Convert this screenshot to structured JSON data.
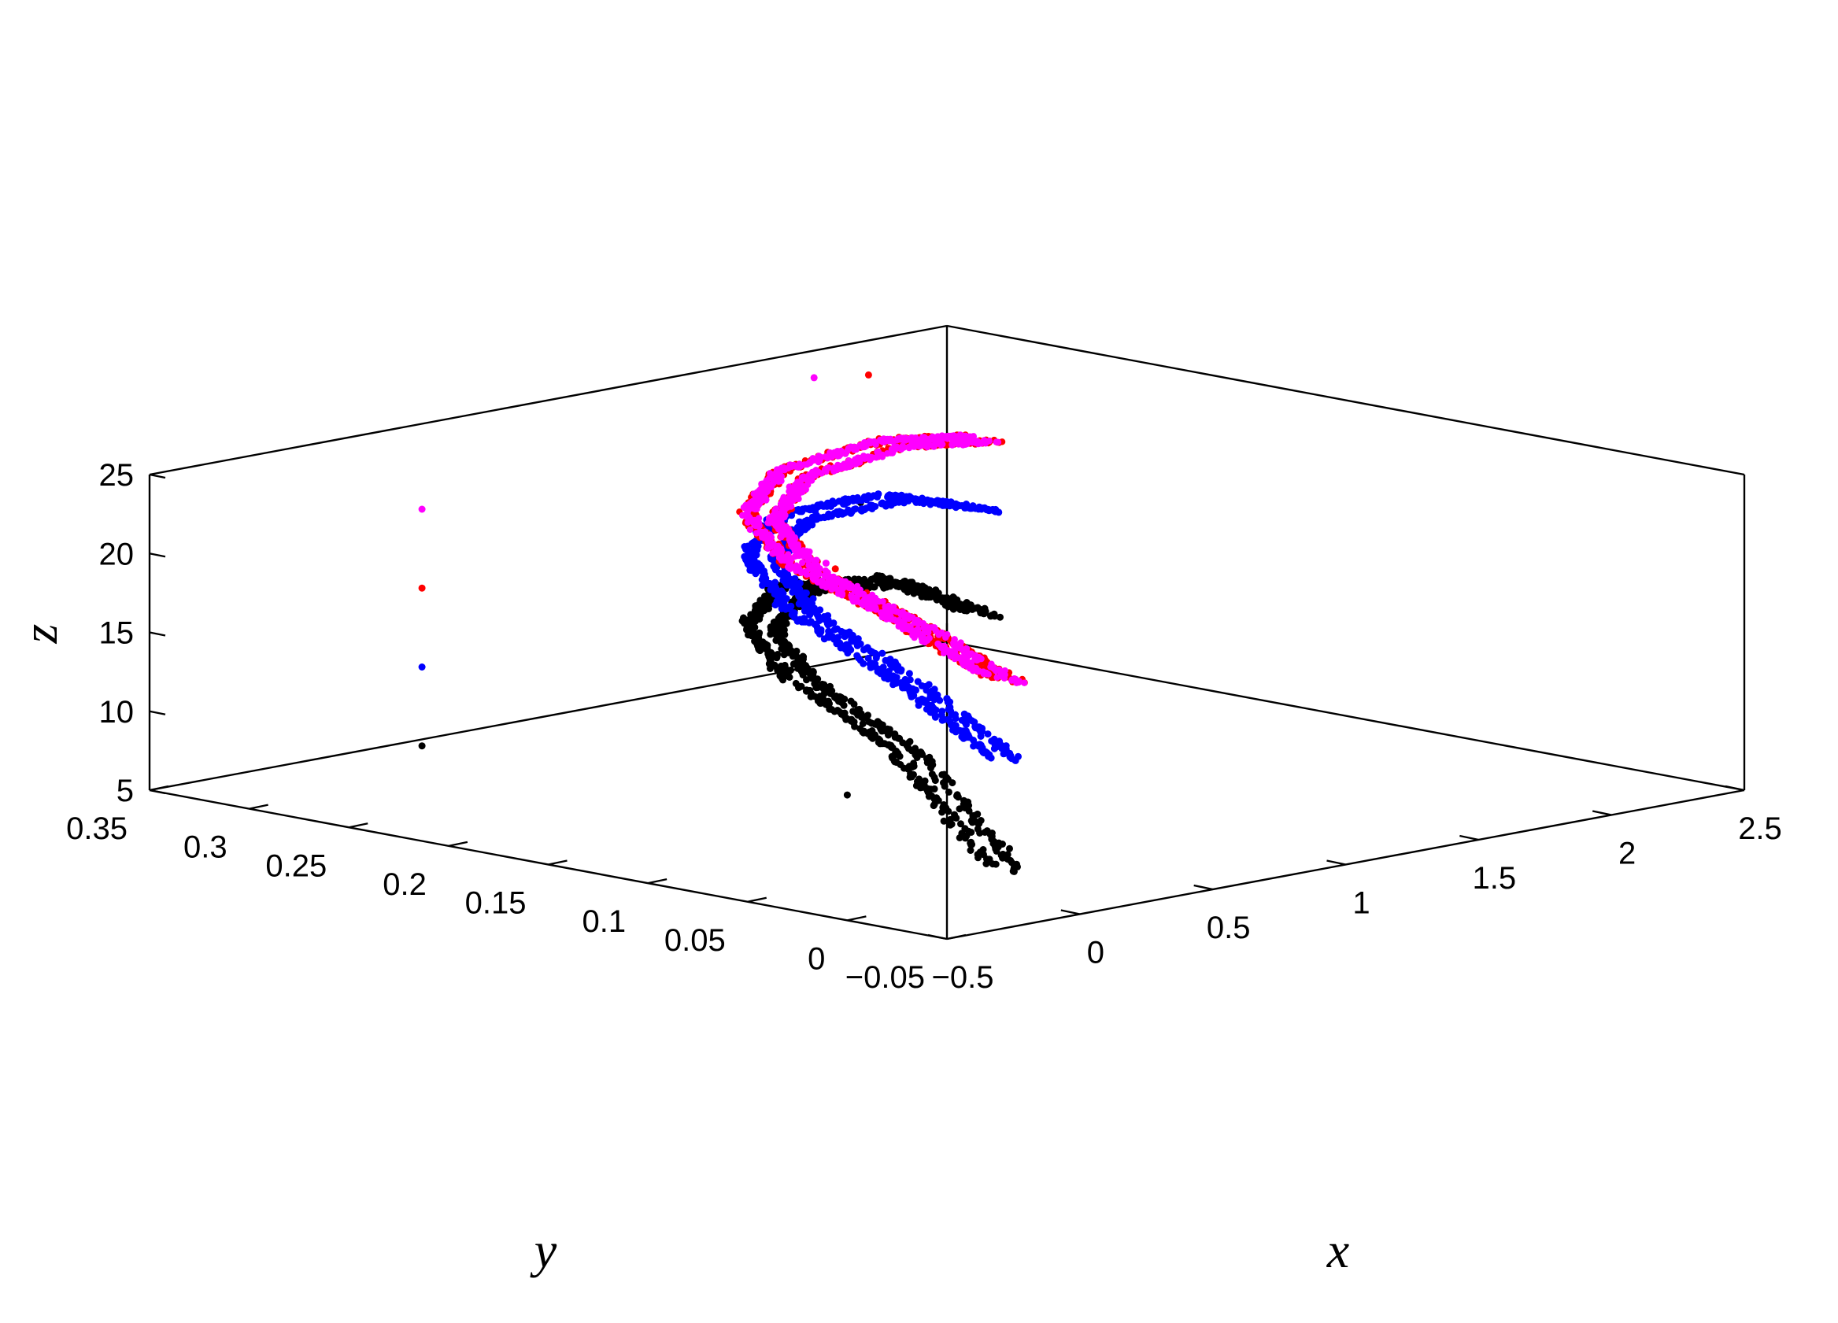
{
  "chart_data": {
    "type": "scatter",
    "projection": "3d",
    "title": "",
    "xlabel": "x",
    "ylabel": "y",
    "zlabel": "z",
    "xlim": [
      -0.5,
      2.5
    ],
    "ylim": [
      -0.05,
      0.35
    ],
    "zlim": [
      5,
      25
    ],
    "xticks": [
      "−0.5",
      "0",
      "0.5",
      "1",
      "1.5",
      "2",
      "2.5"
    ],
    "yticks": [
      "−0.05",
      "0",
      "0.05",
      "0.1",
      "0.15",
      "0.2",
      "0.25",
      "0.3",
      "0.35"
    ],
    "zticks": [
      "5",
      "10",
      "15",
      "20",
      "25"
    ],
    "grid": false,
    "colors": {
      "black_series": "#000000",
      "blue_series": "#0000ff",
      "red_series": "#ff0000",
      "magenta_series": "#ff00ff"
    },
    "series": [
      {
        "color": "#000000",
        "curve": {
          "z_base": 6.9,
          "z_bulge": 9.0,
          "z_drop_start": 0.6,
          "x": [
            2.03,
            1.55,
            0.95,
            0.45,
            0.15,
            0.03,
            0.02
          ],
          "y": [
            0.27,
            0.25,
            0.22,
            0.17,
            0.11,
            0.04,
            -0.01
          ],
          "z": [
            10.1,
            14.2,
            16.3,
            16.6,
            15.6,
            13.0,
            6.8
          ]
        },
        "outliers": [
          [
            0.3,
            0.32,
            6.0
          ],
          [
            -0.35,
            0.02,
            12.0
          ],
          [
            1.35,
            0.24,
            20.0
          ]
        ]
      },
      {
        "color": "#0000ff",
        "curve": {
          "z_base": 14.3,
          "z_bulge": 6.6,
          "z_drop_start": 0.62,
          "x": [
            2.03,
            1.55,
            0.95,
            0.45,
            0.15,
            0.03,
            0.02
          ],
          "y": [
            0.27,
            0.25,
            0.22,
            0.17,
            0.11,
            0.04,
            -0.01
          ],
          "z": [
            16.8,
            19.5,
            20.8,
            21.0,
            20.0,
            17.5,
            13.8
          ]
        },
        "outliers": [
          [
            0.3,
            0.32,
            11.0
          ]
        ]
      },
      {
        "color": "#ff0000",
        "curve": {
          "z_base": 19.0,
          "z_bulge": 4.4,
          "z_drop_start": 0.64,
          "x": [
            2.03,
            1.55,
            0.95,
            0.45,
            0.15,
            0.03,
            0.02
          ],
          "y": [
            0.27,
            0.25,
            0.22,
            0.17,
            0.11,
            0.04,
            -0.01
          ],
          "z": [
            21.2,
            22.9,
            23.6,
            23.6,
            22.8,
            21.3,
            18.8
          ]
        },
        "outliers": [
          [
            0.3,
            0.32,
            16.0
          ],
          [
            1.38,
            0.24,
            28.0
          ],
          [
            -0.32,
            0.03,
            26.0
          ]
        ]
      },
      {
        "color": "#ff00ff",
        "curve": {
          "z_base": 19.0,
          "z_bulge": 4.4,
          "z_drop_start": 0.64,
          "x": [
            2.03,
            1.55,
            0.95,
            0.45,
            0.15,
            0.03,
            0.02
          ],
          "y": [
            0.27,
            0.25,
            0.22,
            0.17,
            0.11,
            0.04,
            -0.01
          ],
          "z": [
            21.2,
            22.9,
            23.6,
            23.6,
            22.8,
            21.3,
            18.8
          ]
        },
        "outliers": [
          [
            0.3,
            0.32,
            21.0
          ],
          [
            1.25,
            0.25,
            28.0
          ],
          [
            -0.28,
            0.04,
            26.0
          ]
        ]
      }
    ]
  }
}
